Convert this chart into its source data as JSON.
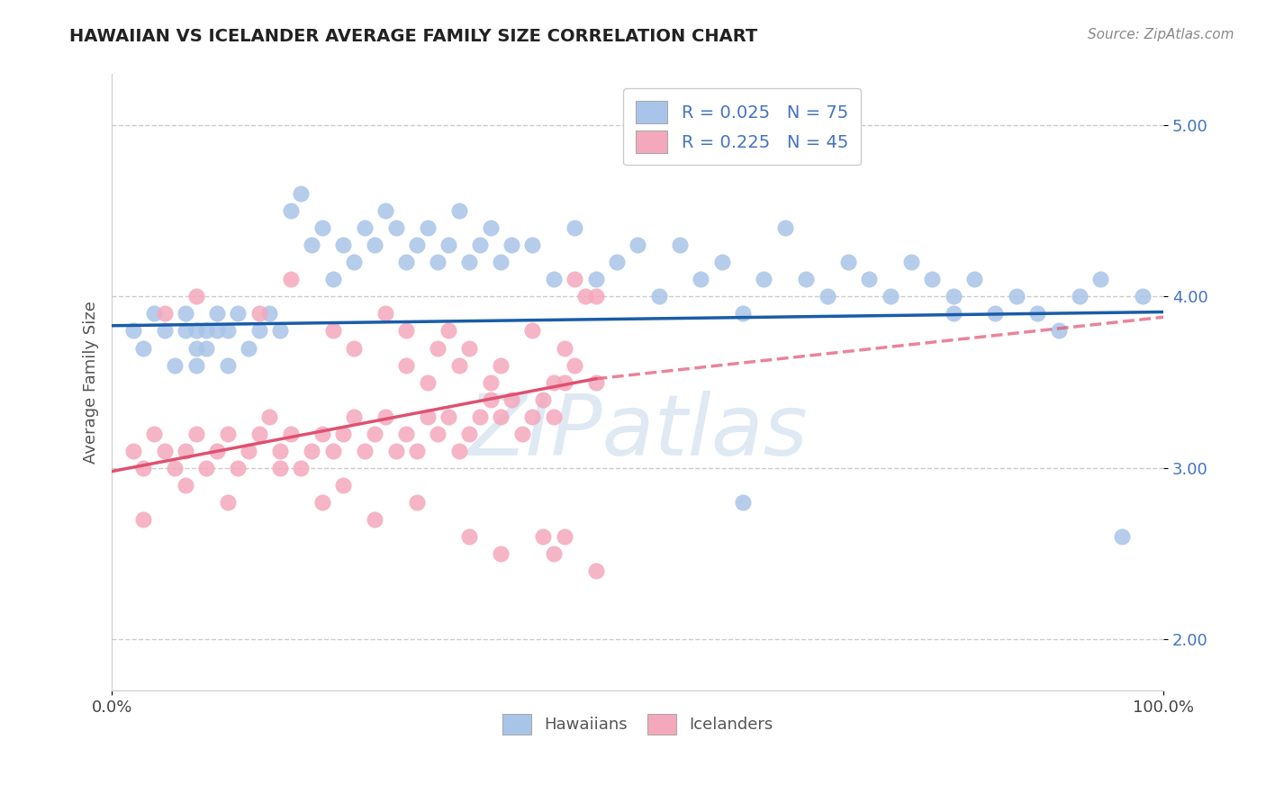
{
  "title": "HAWAIIAN VS ICELANDER AVERAGE FAMILY SIZE CORRELATION CHART",
  "source_text": "Source: ZipAtlas.com",
  "xlabel": "",
  "ylabel": "Average Family Size",
  "xlim": [
    0,
    100
  ],
  "ylim": [
    1.7,
    5.3
  ],
  "yticks": [
    2.0,
    3.0,
    4.0,
    5.0
  ],
  "hawaiian_color": "#a8c4e8",
  "icelander_color": "#f4a8bc",
  "hawaiian_line_color": "#1a5ca8",
  "icelander_line_color": "#e05070",
  "background_color": "#ffffff",
  "watermark_color": "#d0e0f0",
  "hawaiians_x": [
    2,
    3,
    4,
    5,
    6,
    7,
    7,
    8,
    8,
    8,
    9,
    9,
    10,
    10,
    11,
    11,
    12,
    13,
    14,
    15,
    16,
    17,
    18,
    19,
    20,
    21,
    22,
    23,
    24,
    25,
    26,
    27,
    28,
    29,
    30,
    31,
    32,
    33,
    34,
    35,
    36,
    37,
    38,
    40,
    42,
    44,
    46,
    48,
    50,
    52,
    54,
    56,
    58,
    60,
    62,
    64,
    66,
    68,
    70,
    72,
    74,
    76,
    78,
    80,
    82,
    84,
    86,
    88,
    90,
    92,
    94,
    96,
    98,
    60,
    80
  ],
  "hawaiians_y": [
    3.8,
    3.7,
    3.9,
    3.8,
    3.6,
    3.8,
    3.9,
    3.7,
    3.8,
    3.6,
    3.8,
    3.7,
    3.8,
    3.9,
    3.8,
    3.6,
    3.9,
    3.7,
    3.8,
    3.9,
    3.8,
    4.5,
    4.6,
    4.3,
    4.4,
    4.1,
    4.3,
    4.2,
    4.4,
    4.3,
    4.5,
    4.4,
    4.2,
    4.3,
    4.4,
    4.2,
    4.3,
    4.5,
    4.2,
    4.3,
    4.4,
    4.2,
    4.3,
    4.3,
    4.1,
    4.4,
    4.1,
    4.2,
    4.3,
    4.0,
    4.3,
    4.1,
    4.2,
    3.9,
    4.1,
    4.4,
    4.1,
    4.0,
    4.2,
    4.1,
    4.0,
    4.2,
    4.1,
    4.0,
    4.1,
    3.9,
    4.0,
    3.9,
    3.8,
    4.0,
    4.1,
    2.6,
    4.0,
    2.8,
    3.9
  ],
  "icelanders_x": [
    2,
    3,
    4,
    5,
    6,
    7,
    8,
    9,
    10,
    11,
    12,
    13,
    14,
    15,
    16,
    17,
    18,
    19,
    20,
    21,
    22,
    23,
    24,
    25,
    26,
    27,
    28,
    29,
    30,
    31,
    32,
    33,
    34,
    35,
    36,
    37,
    38,
    39,
    40,
    41,
    42,
    43,
    44,
    45,
    46
  ],
  "icelanders_y": [
    3.1,
    3.0,
    3.2,
    3.1,
    3.0,
    3.1,
    3.2,
    3.0,
    3.1,
    3.2,
    3.0,
    3.1,
    3.2,
    3.3,
    3.1,
    3.2,
    3.0,
    3.1,
    3.2,
    3.1,
    3.2,
    3.3,
    3.1,
    3.2,
    3.3,
    3.1,
    3.2,
    3.1,
    3.3,
    3.2,
    3.3,
    3.1,
    3.2,
    3.3,
    3.4,
    3.3,
    3.4,
    3.2,
    3.3,
    3.4,
    3.3,
    3.5,
    3.6,
    4.0,
    3.5
  ],
  "icelanders_outliers_x": [
    5,
    8,
    14,
    17,
    21,
    23,
    26,
    28,
    28,
    30,
    31,
    32,
    33,
    34,
    36,
    37,
    40,
    42,
    43,
    44,
    46,
    3,
    7,
    11,
    16,
    20,
    22,
    25,
    29,
    34,
    37,
    41,
    42,
    43,
    46
  ],
  "icelanders_outliers_y": [
    3.9,
    4.0,
    3.9,
    4.1,
    3.8,
    3.7,
    3.9,
    3.8,
    3.6,
    3.5,
    3.7,
    3.8,
    3.6,
    3.7,
    3.5,
    3.6,
    3.8,
    3.5,
    3.7,
    4.1,
    4.0,
    2.7,
    2.9,
    2.8,
    3.0,
    2.8,
    2.9,
    2.7,
    2.8,
    2.6,
    2.5,
    2.6,
    2.5,
    2.6,
    2.4
  ],
  "h_line_x0": 0,
  "h_line_x1": 100,
  "h_line_y0": 3.83,
  "h_line_y1": 3.91,
  "i_line_x0": 0,
  "i_line_x1": 46,
  "i_line_y0": 2.98,
  "i_line_y1": 3.52,
  "i_dash_x0": 46,
  "i_dash_x1": 100,
  "i_dash_y0": 3.52,
  "i_dash_y1": 3.88
}
